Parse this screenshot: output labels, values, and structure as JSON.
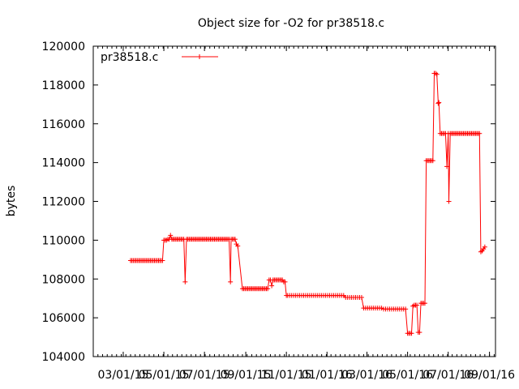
{
  "chart_data": {
    "type": "line",
    "title": "Object size for -O2 for pr38518.c",
    "xlabel": "",
    "ylabel": "bytes",
    "xlim": [
      "2015-01-15",
      "2016-09-10"
    ],
    "ylim": [
      104000,
      120000
    ],
    "x_ticks": [
      "2015-03-01",
      "2015-05-01",
      "2015-07-01",
      "2015-09-01",
      "2015-11-01",
      "2016-01-01",
      "2016-03-01",
      "2016-05-01",
      "2016-07-01",
      "2016-09-01"
    ],
    "x_tick_labels": [
      "03/01/15",
      "05/01/15",
      "07/01/15",
      "09/01/15",
      "11/01/15",
      "01/01/16",
      "03/01/16",
      "05/01/16",
      "07/01/16",
      "09/01/16"
    ],
    "y_ticks": [
      104000,
      106000,
      108000,
      110000,
      112000,
      114000,
      116000,
      118000,
      120000
    ],
    "y_tick_labels": [
      "104000",
      "106000",
      "108000",
      "110000",
      "112000",
      "114000",
      "116000",
      "118000",
      "120000"
    ],
    "legend_position": "top-left",
    "grid": false,
    "series": [
      {
        "name": "pr38518.c",
        "color": "#ff0000",
        "points": [
          [
            "2015-03-12",
            108950
          ],
          [
            "2015-03-14",
            108950
          ],
          [
            "2015-03-16",
            108950
          ],
          [
            "2015-03-18",
            108950
          ],
          [
            "2015-03-20",
            108950
          ],
          [
            "2015-03-22",
            108950
          ],
          [
            "2015-03-24",
            108950
          ],
          [
            "2015-03-26",
            108950
          ],
          [
            "2015-03-28",
            108950
          ],
          [
            "2015-03-30",
            108950
          ],
          [
            "2015-04-01",
            108950
          ],
          [
            "2015-04-03",
            108950
          ],
          [
            "2015-04-05",
            108950
          ],
          [
            "2015-04-07",
            108950
          ],
          [
            "2015-04-09",
            108950
          ],
          [
            "2015-04-11",
            108950
          ],
          [
            "2015-04-13",
            108950
          ],
          [
            "2015-04-15",
            108950
          ],
          [
            "2015-04-17",
            108950
          ],
          [
            "2015-04-19",
            108950
          ],
          [
            "2015-04-21",
            108950
          ],
          [
            "2015-04-23",
            108950
          ],
          [
            "2015-04-25",
            108950
          ],
          [
            "2015-04-27",
            108950
          ],
          [
            "2015-04-29",
            108950
          ],
          [
            "2015-05-01",
            110000
          ],
          [
            "2015-05-03",
            110000
          ],
          [
            "2015-05-05",
            110000
          ],
          [
            "2015-05-07",
            110050
          ],
          [
            "2015-05-09",
            110050
          ],
          [
            "2015-05-11",
            110250
          ],
          [
            "2015-05-13",
            110050
          ],
          [
            "2015-05-15",
            110050
          ],
          [
            "2015-05-17",
            110050
          ],
          [
            "2015-05-19",
            110050
          ],
          [
            "2015-05-21",
            110050
          ],
          [
            "2015-05-23",
            110050
          ],
          [
            "2015-05-25",
            110050
          ],
          [
            "2015-05-27",
            110050
          ],
          [
            "2015-05-29",
            110050
          ],
          [
            "2015-05-31",
            110050
          ],
          [
            "2015-06-02",
            107850
          ],
          [
            "2015-06-04",
            110050
          ],
          [
            "2015-06-06",
            110050
          ],
          [
            "2015-06-08",
            110050
          ],
          [
            "2015-06-10",
            110050
          ],
          [
            "2015-06-12",
            110050
          ],
          [
            "2015-06-14",
            110050
          ],
          [
            "2015-06-16",
            110050
          ],
          [
            "2015-06-18",
            110050
          ],
          [
            "2015-06-20",
            110050
          ],
          [
            "2015-06-22",
            110050
          ],
          [
            "2015-06-24",
            110050
          ],
          [
            "2015-06-26",
            110050
          ],
          [
            "2015-06-28",
            110050
          ],
          [
            "2015-06-30",
            110050
          ],
          [
            "2015-07-02",
            110050
          ],
          [
            "2015-07-04",
            110050
          ],
          [
            "2015-07-06",
            110050
          ],
          [
            "2015-07-08",
            110050
          ],
          [
            "2015-07-10",
            110050
          ],
          [
            "2015-07-12",
            110050
          ],
          [
            "2015-07-14",
            110050
          ],
          [
            "2015-07-16",
            110050
          ],
          [
            "2015-07-18",
            110050
          ],
          [
            "2015-07-20",
            110050
          ],
          [
            "2015-07-22",
            110050
          ],
          [
            "2015-07-24",
            110050
          ],
          [
            "2015-07-26",
            110050
          ],
          [
            "2015-07-28",
            110050
          ],
          [
            "2015-07-30",
            110050
          ],
          [
            "2015-08-01",
            110050
          ],
          [
            "2015-08-03",
            110050
          ],
          [
            "2015-08-05",
            110050
          ],
          [
            "2015-08-07",
            110050
          ],
          [
            "2015-08-09",
            107850
          ],
          [
            "2015-08-10",
            110050
          ],
          [
            "2015-08-12",
            110050
          ],
          [
            "2015-08-14",
            110050
          ],
          [
            "2015-08-16",
            110050
          ],
          [
            "2015-08-18",
            109800
          ],
          [
            "2015-08-20",
            109700
          ],
          [
            "2015-08-27",
            107500
          ],
          [
            "2015-08-29",
            107500
          ],
          [
            "2015-08-31",
            107500
          ],
          [
            "2015-09-02",
            107500
          ],
          [
            "2015-09-04",
            107500
          ],
          [
            "2015-09-06",
            107500
          ],
          [
            "2015-09-08",
            107500
          ],
          [
            "2015-09-10",
            107500
          ],
          [
            "2015-09-12",
            107500
          ],
          [
            "2015-09-14",
            107500
          ],
          [
            "2015-09-16",
            107500
          ],
          [
            "2015-09-18",
            107500
          ],
          [
            "2015-09-20",
            107500
          ],
          [
            "2015-09-22",
            107500
          ],
          [
            "2015-09-24",
            107500
          ],
          [
            "2015-09-26",
            107500
          ],
          [
            "2015-09-28",
            107500
          ],
          [
            "2015-09-30",
            107500
          ],
          [
            "2015-10-02",
            107500
          ],
          [
            "2015-10-04",
            107500
          ],
          [
            "2015-10-06",
            107950
          ],
          [
            "2015-10-08",
            107950
          ],
          [
            "2015-10-10",
            107650
          ],
          [
            "2015-10-12",
            107950
          ],
          [
            "2015-10-14",
            107950
          ],
          [
            "2015-10-16",
            107950
          ],
          [
            "2015-10-18",
            107950
          ],
          [
            "2015-10-20",
            107950
          ],
          [
            "2015-10-22",
            107950
          ],
          [
            "2015-10-24",
            107950
          ],
          [
            "2015-10-26",
            107950
          ],
          [
            "2015-10-28",
            107850
          ],
          [
            "2015-10-30",
            107850
          ],
          [
            "2015-11-01",
            107150
          ],
          [
            "2015-11-03",
            107150
          ],
          [
            "2015-11-06",
            107150
          ],
          [
            "2015-11-09",
            107150
          ],
          [
            "2015-11-12",
            107150
          ],
          [
            "2015-11-15",
            107150
          ],
          [
            "2015-11-18",
            107150
          ],
          [
            "2015-11-21",
            107150
          ],
          [
            "2015-11-24",
            107150
          ],
          [
            "2015-11-27",
            107150
          ],
          [
            "2015-11-30",
            107150
          ],
          [
            "2015-12-03",
            107150
          ],
          [
            "2015-12-06",
            107150
          ],
          [
            "2015-12-09",
            107150
          ],
          [
            "2015-12-12",
            107150
          ],
          [
            "2015-12-15",
            107150
          ],
          [
            "2015-12-18",
            107150
          ],
          [
            "2015-12-21",
            107150
          ],
          [
            "2015-12-24",
            107150
          ],
          [
            "2015-12-27",
            107150
          ],
          [
            "2015-12-30",
            107150
          ],
          [
            "2016-01-02",
            107150
          ],
          [
            "2016-01-05",
            107150
          ],
          [
            "2016-01-08",
            107150
          ],
          [
            "2016-01-11",
            107150
          ],
          [
            "2016-01-14",
            107150
          ],
          [
            "2016-01-17",
            107150
          ],
          [
            "2016-01-20",
            107150
          ],
          [
            "2016-01-23",
            107150
          ],
          [
            "2016-01-26",
            107150
          ],
          [
            "2016-01-29",
            107050
          ],
          [
            "2016-02-01",
            107050
          ],
          [
            "2016-02-04",
            107050
          ],
          [
            "2016-02-07",
            107050
          ],
          [
            "2016-02-10",
            107050
          ],
          [
            "2016-02-13",
            107050
          ],
          [
            "2016-02-16",
            107050
          ],
          [
            "2016-02-19",
            107050
          ],
          [
            "2016-02-22",
            107050
          ],
          [
            "2016-02-25",
            106500
          ],
          [
            "2016-02-28",
            106500
          ],
          [
            "2016-03-02",
            106500
          ],
          [
            "2016-03-05",
            106500
          ],
          [
            "2016-03-08",
            106500
          ],
          [
            "2016-03-11",
            106500
          ],
          [
            "2016-03-14",
            106500
          ],
          [
            "2016-03-17",
            106500
          ],
          [
            "2016-03-20",
            106500
          ],
          [
            "2016-03-23",
            106500
          ],
          [
            "2016-03-26",
            106450
          ],
          [
            "2016-03-29",
            106450
          ],
          [
            "2016-04-01",
            106450
          ],
          [
            "2016-04-04",
            106450
          ],
          [
            "2016-04-07",
            106450
          ],
          [
            "2016-04-10",
            106450
          ],
          [
            "2016-04-13",
            106450
          ],
          [
            "2016-04-16",
            106450
          ],
          [
            "2016-04-19",
            106450
          ],
          [
            "2016-04-22",
            106450
          ],
          [
            "2016-04-25",
            106450
          ],
          [
            "2016-04-28",
            106450
          ],
          [
            "2016-05-01",
            105200
          ],
          [
            "2016-05-03",
            105200
          ],
          [
            "2016-05-05",
            105200
          ],
          [
            "2016-05-07",
            105200
          ],
          [
            "2016-05-09",
            106600
          ],
          [
            "2016-05-11",
            106650
          ],
          [
            "2016-05-13",
            106650
          ],
          [
            "2016-05-15",
            106650
          ],
          [
            "2016-05-17",
            105250
          ],
          [
            "2016-05-19",
            105250
          ],
          [
            "2016-05-21",
            106750
          ],
          [
            "2016-05-23",
            106750
          ],
          [
            "2016-05-25",
            106750
          ],
          [
            "2016-05-27",
            106750
          ],
          [
            "2016-05-29",
            114100
          ],
          [
            "2016-05-31",
            114100
          ],
          [
            "2016-06-02",
            114100
          ],
          [
            "2016-06-04",
            114100
          ],
          [
            "2016-06-06",
            114100
          ],
          [
            "2016-06-08",
            114100
          ],
          [
            "2016-06-10",
            118600
          ],
          [
            "2016-06-12",
            118600
          ],
          [
            "2016-06-14",
            118550
          ],
          [
            "2016-06-16",
            117050
          ],
          [
            "2016-06-17",
            117100
          ],
          [
            "2016-06-19",
            115500
          ],
          [
            "2016-06-21",
            115500
          ],
          [
            "2016-06-23",
            115500
          ],
          [
            "2016-06-25",
            115500
          ],
          [
            "2016-06-27",
            115500
          ],
          [
            "2016-06-29",
            113800
          ],
          [
            "2016-07-01",
            115500
          ],
          [
            "2016-07-02",
            112000
          ],
          [
            "2016-07-04",
            115500
          ],
          [
            "2016-07-06",
            115500
          ],
          [
            "2016-07-08",
            115500
          ],
          [
            "2016-07-10",
            115500
          ],
          [
            "2016-07-12",
            115500
          ],
          [
            "2016-07-14",
            115500
          ],
          [
            "2016-07-16",
            115500
          ],
          [
            "2016-07-18",
            115500
          ],
          [
            "2016-07-20",
            115500
          ],
          [
            "2016-07-22",
            115500
          ],
          [
            "2016-07-24",
            115500
          ],
          [
            "2016-07-26",
            115500
          ],
          [
            "2016-07-28",
            115500
          ],
          [
            "2016-07-30",
            115500
          ],
          [
            "2016-08-01",
            115500
          ],
          [
            "2016-08-03",
            115500
          ],
          [
            "2016-08-05",
            115500
          ],
          [
            "2016-08-07",
            115500
          ],
          [
            "2016-08-09",
            115500
          ],
          [
            "2016-08-11",
            115500
          ],
          [
            "2016-08-13",
            115500
          ],
          [
            "2016-08-15",
            115500
          ],
          [
            "2016-08-17",
            115500
          ],
          [
            "2016-08-19",
            109400
          ],
          [
            "2016-08-21",
            109450
          ],
          [
            "2016-08-23",
            109550
          ],
          [
            "2016-08-25",
            109650
          ]
        ]
      }
    ]
  }
}
